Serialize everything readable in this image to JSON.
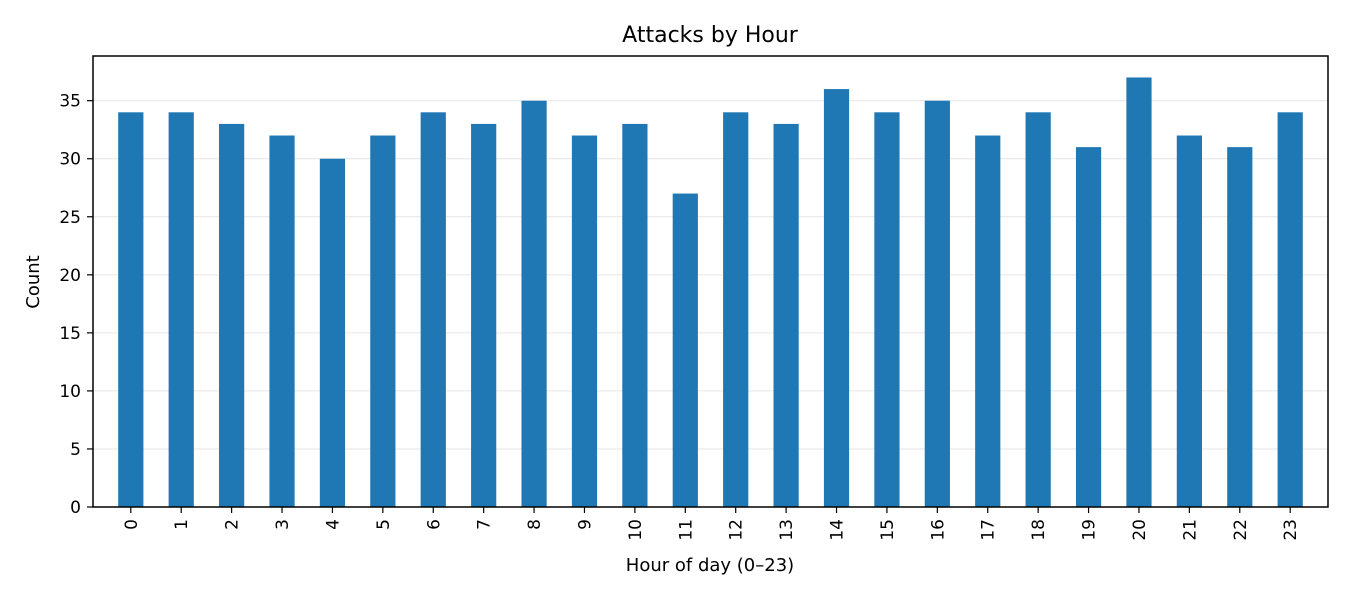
{
  "chart_data": {
    "type": "bar",
    "title": "Attacks by Hour",
    "xlabel": "Hour of day (0–23)",
    "ylabel": "Count",
    "categories": [
      "0",
      "1",
      "2",
      "3",
      "4",
      "5",
      "6",
      "7",
      "8",
      "9",
      "10",
      "11",
      "12",
      "13",
      "14",
      "15",
      "16",
      "17",
      "18",
      "19",
      "20",
      "21",
      "22",
      "23"
    ],
    "values": [
      34,
      34,
      33,
      32,
      30,
      32,
      34,
      33,
      35,
      32,
      33,
      27,
      34,
      33,
      36,
      34,
      35,
      32,
      34,
      31,
      37,
      32,
      31,
      34
    ],
    "ylim": [
      0,
      38.85
    ],
    "yticks": [
      0,
      5,
      10,
      15,
      20,
      25,
      30,
      35
    ],
    "grid": "horizontal",
    "bar_color": "#1f77b4",
    "xtick_rotation": "vertical"
  }
}
